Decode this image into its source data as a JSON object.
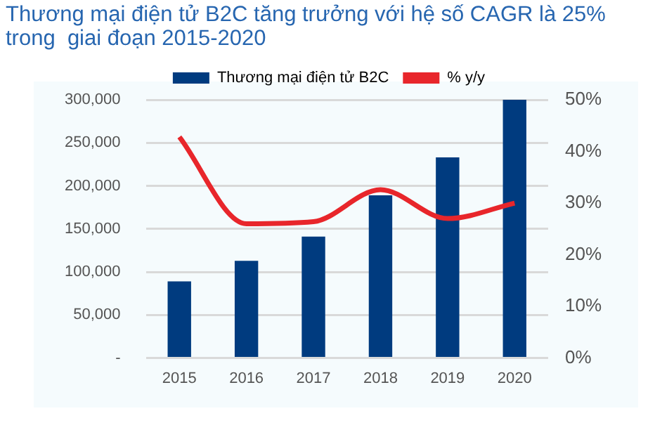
{
  "chart_data": {
    "type": "bar",
    "title": "Thương mại điện tử B2C tăng trưởng với hệ số CAGR là 25% trong  giai đoạn 2015-2020",
    "categories": [
      "2015",
      "2016",
      "2017",
      "2018",
      "2019",
      "2020"
    ],
    "series": [
      {
        "name": "Thương mại điện tử B2C",
        "color": "#003b7f",
        "values": [
          89000,
          113000,
          141000,
          189000,
          233000,
          300000
        ]
      },
      {
        "name": "% y/y",
        "type": "line",
        "axis": "y2",
        "color": "#e8262b",
        "values": [
          42.8,
          26,
          26.4,
          32.6,
          27,
          30
        ]
      }
    ],
    "ylim": [
      0,
      300000
    ],
    "yticks": [
      {
        "value": 0,
        "label": "-"
      },
      {
        "value": 50000,
        "label": "50,000"
      },
      {
        "value": 100000,
        "label": "100,000"
      },
      {
        "value": 150000,
        "label": "150,000"
      },
      {
        "value": 200000,
        "label": "200,000"
      },
      {
        "value": 250000,
        "label": "250,000"
      },
      {
        "value": 300000,
        "label": "300,000"
      }
    ],
    "y2lim": [
      0,
      50
    ],
    "y2ticks": [
      {
        "value": 0,
        "label": "0%"
      },
      {
        "value": 10,
        "label": "10%"
      },
      {
        "value": 20,
        "label": "20%"
      },
      {
        "value": 30,
        "label": "30%"
      },
      {
        "value": 40,
        "label": "40%"
      },
      {
        "value": 50,
        "label": "50%"
      }
    ],
    "grid": "y",
    "legend": "top",
    "marker": "none"
  }
}
